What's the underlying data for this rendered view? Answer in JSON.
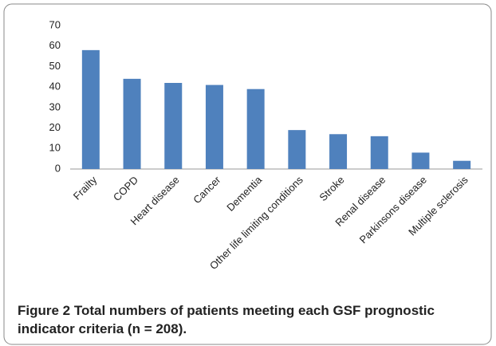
{
  "chart_data": {
    "type": "bar",
    "categories": [
      "Frailty",
      "COPD",
      "Heart disease",
      "Cancer",
      "Dementia",
      "Other life limiting conditions",
      "Stroke",
      "Renal disease",
      "Parkinsons disease",
      "Multiple sclerosis"
    ],
    "values": [
      58,
      44,
      42,
      41,
      39,
      19,
      17,
      16,
      8,
      4
    ],
    "color": "#4f81bd",
    "ylim": [
      0,
      70
    ],
    "yticks": [
      0,
      10,
      20,
      30,
      40,
      50,
      60,
      70
    ],
    "grid": false,
    "caption_label": "Figure 2",
    "caption": "Total numbers of patients meeting each GSF prognostic indicator criteria (n = 208)."
  }
}
